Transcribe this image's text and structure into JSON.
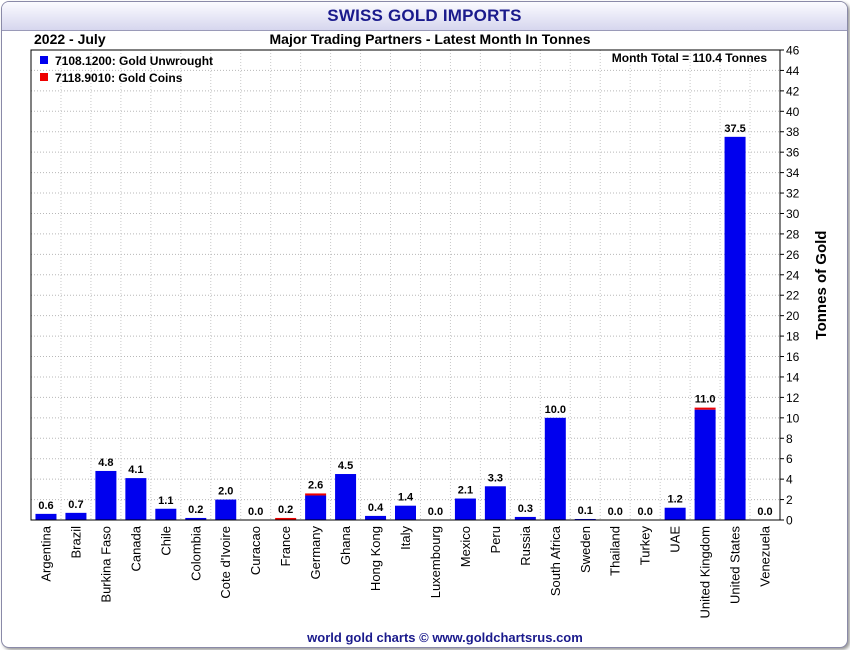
{
  "header": {
    "title": "SWISS GOLD IMPORTS",
    "period": "2022 - July",
    "subtitle": "Major Trading Partners - Latest Month In Tonnes"
  },
  "annotation": "Month Total = 110.4 Tonnes",
  "footer": "world gold charts © www.goldchartsrus.com",
  "colors": {
    "unwrought": "#0000ee",
    "coins": "#ee0000",
    "title": "#1a1a8c"
  },
  "chart_data": {
    "type": "bar",
    "stacked": true,
    "ylabel": "Tonnes of Gold",
    "ylim": [
      0,
      46
    ],
    "ytick_step": 2,
    "grid": true,
    "legend_position": "top-left",
    "categories": [
      "Argentina",
      "Brazil",
      "Burkina Faso",
      "Canada",
      "Chile",
      "Colombia",
      "Cote d'Ivoire",
      "Curacao",
      "France",
      "Germany",
      "Ghana",
      "Hong Kong",
      "Italy",
      "Luxembourg",
      "Mexico",
      "Peru",
      "Russia",
      "South Africa",
      "Sweden",
      "Thailand",
      "Turkey",
      "UAE",
      "United Kingdom",
      "United States",
      "Venezuela"
    ],
    "series": [
      {
        "name": "7108.1200: Gold Unwrought",
        "color": "#0000ee",
        "values": [
          0.6,
          0.7,
          4.8,
          4.1,
          1.1,
          0.2,
          2.0,
          0.0,
          0.0,
          2.4,
          4.5,
          0.4,
          1.4,
          0.0,
          2.1,
          3.3,
          0.3,
          10.0,
          0.1,
          0.0,
          0.0,
          1.2,
          10.8,
          37.5,
          0.0
        ]
      },
      {
        "name": "7118.9010: Gold Coins",
        "color": "#ee0000",
        "values": [
          0.0,
          0.0,
          0.0,
          0.0,
          0.0,
          0.0,
          0.0,
          0.0,
          0.2,
          0.2,
          0.0,
          0.0,
          0.0,
          0.0,
          0.0,
          0.0,
          0.0,
          0.0,
          0.0,
          0.0,
          0.0,
          0.0,
          0.2,
          0.0,
          0.0
        ]
      }
    ],
    "labels": [
      "0.6",
      "0.7",
      "4.8",
      "4.1",
      "1.1",
      "0.2",
      "2.0",
      "0.0",
      "0.2",
      "2.6",
      "4.5",
      "0.4",
      "1.4",
      "0.0",
      "2.1",
      "3.3",
      "0.3",
      "10.0",
      "0.1",
      "0.0",
      "0.0",
      "1.2",
      "11.0",
      "37.5",
      "0.0"
    ]
  }
}
